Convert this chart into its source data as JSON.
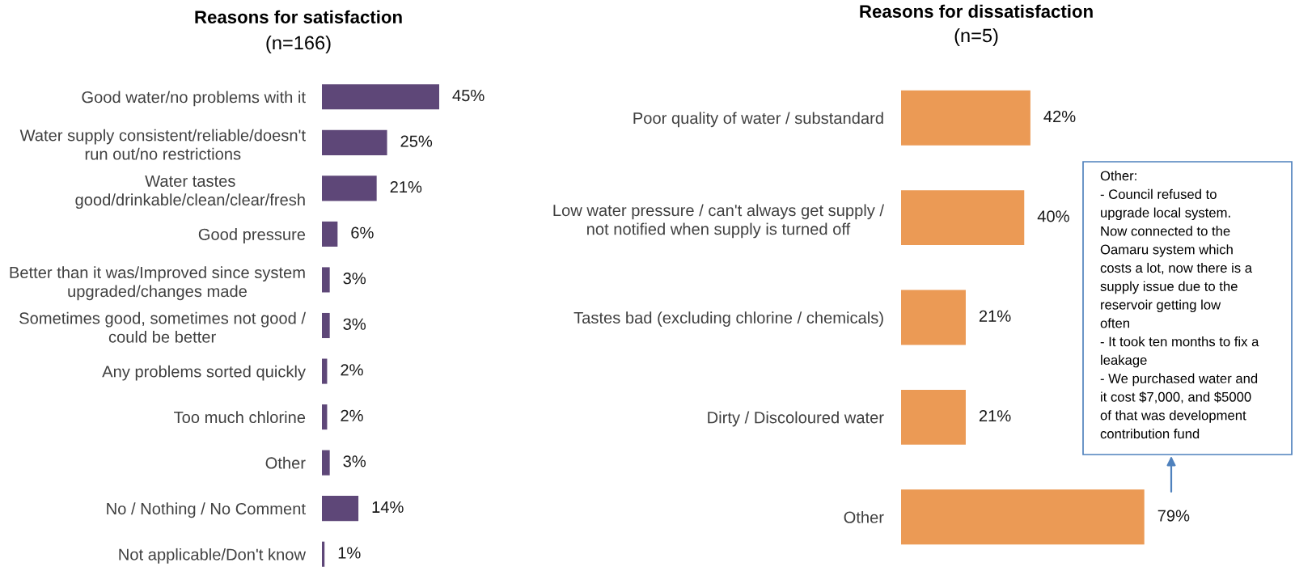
{
  "chart_data": [
    {
      "type": "bar",
      "orientation": "horizontal",
      "title": "Reasons for satisfaction",
      "subtitle": "(n=166)",
      "tick_labels": "y",
      "color": "#5E4778",
      "categories": [
        "Good water/no problems with it",
        "Water supply consistent/reliable/doesn't\nrun out/no restrictions",
        "Water tastes\ngood/drinkable/clean/clear/fresh",
        "Good pressure",
        "Better than it was/Improved since system\nupgraded/changes made",
        "Sometimes good, sometimes not good /\ncould be better",
        "Any problems sorted quickly",
        "Too much chlorine",
        "Other",
        "No / Nothing / No Comment",
        "Not applicable/Don't know"
      ],
      "values": [
        45,
        25,
        21,
        6,
        3,
        3,
        2,
        2,
        3,
        14,
        1
      ],
      "value_labels": [
        "45%",
        "25%",
        "21%",
        "6%",
        "3%",
        "3%",
        "2%",
        "2%",
        "3%",
        "14%",
        "1%"
      ]
    },
    {
      "type": "bar",
      "orientation": "horizontal",
      "title": "Reasons for dissatisfaction",
      "subtitle": "(n=5)",
      "tick_labels": "y",
      "color": "#EB9A55",
      "categories": [
        "Poor quality of water / substandard",
        "Low water pressure / can't always get supply /\nnot notified when supply is turned off",
        "Tastes bad (excluding chlorine / chemicals)",
        "Dirty / Discoloured water",
        "Other"
      ],
      "values": [
        42,
        40,
        21,
        21,
        79
      ],
      "value_labels": [
        "42%",
        "40%",
        "21%",
        "21%",
        "79%"
      ],
      "annotations": [
        "Other:\n- Council refused to\nupgrade local system.\nNow connected to the\nOamaru system which\ncosts a lot, now there is a\nsupply issue due to the\nreservoir getting low\noften\n- It took ten months to fix a\nleakage\n- We purchased water and\nit cost $7,000, and $5000\nof that was development\ncontribution fund"
      ]
    }
  ]
}
